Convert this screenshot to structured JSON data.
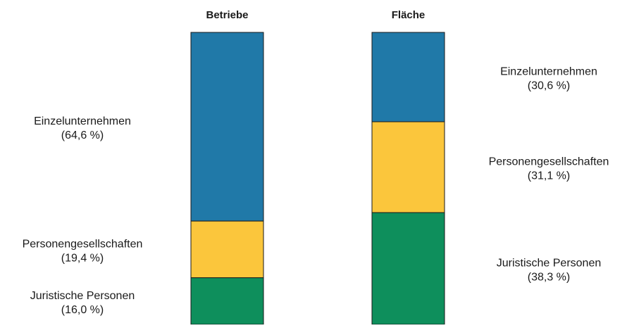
{
  "chart_data": {
    "type": "bar",
    "stacked": true,
    "normalized_percent": true,
    "categories": [
      "Betriebe",
      "Fläche"
    ],
    "series": [
      {
        "name": "Einzelunternehmen",
        "values": [
          64.6,
          30.6
        ],
        "value_labels": [
          "(64,6 %)",
          "(30,6 %)"
        ],
        "color": "#2079a8"
      },
      {
        "name": "Personengesellschaften",
        "values": [
          19.4,
          31.1
        ],
        "value_labels": [
          "(19,4 %)",
          "(31,1 %)"
        ],
        "color": "#fbc63c"
      },
      {
        "name": "Juristische Personen",
        "values": [
          16.0,
          38.3
        ],
        "value_labels": [
          "(16,0 %)",
          "(38,3 %)"
        ],
        "color": "#0e8f5c"
      }
    ],
    "ylim": [
      0,
      100
    ],
    "grid": false,
    "legend": "none"
  }
}
